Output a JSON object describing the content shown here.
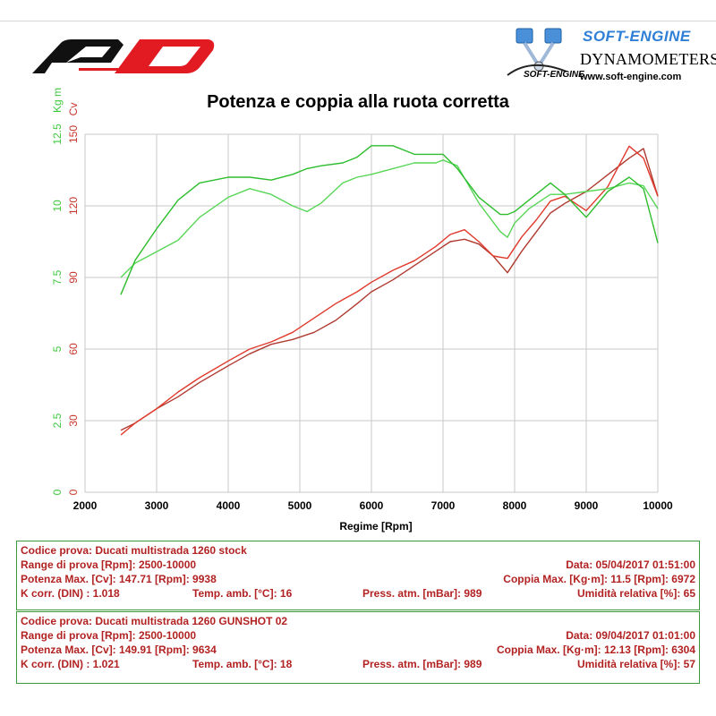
{
  "header": {
    "softengine_brand": "SOFT-ENGINE",
    "softengine_line": "DYNAMOMETERS",
    "softengine_web": "www.soft-engine.com",
    "softengine_script": "SOFT-ENGINE"
  },
  "colors": {
    "power": "#c8352a",
    "torque": "#3cc83c",
    "info_text": "#b22222",
    "box_border": "#3a9a3a",
    "grid": "#c8c8c8"
  },
  "chart_data": {
    "type": "line",
    "title": "Potenza e coppia alla ruota corretta",
    "xlabel": "Regime [Rpm]",
    "ylabel_left_torque": "Kg m",
    "ylabel_left_power": "Cv",
    "xlim": [
      2000,
      10000
    ],
    "ylim_power": [
      0,
      150
    ],
    "ylim_torque": [
      0,
      12.5
    ],
    "x_ticks": [
      "2000",
      "3000",
      "4000",
      "5000",
      "6000",
      "7000",
      "8000",
      "9000",
      "10000"
    ],
    "y_ticks_power": [
      "0",
      "30",
      "60",
      "90",
      "120",
      "150"
    ],
    "y_ticks_torque": [
      "0",
      "2.5",
      "5",
      "7.5",
      "10",
      "12.5"
    ],
    "grid": true,
    "series": [
      {
        "name": "Ducati multistrada 1260 stock",
        "quantity": "power",
        "axis": "Cv",
        "color": "#b03a30",
        "x": [
          2500,
          2700,
          3000,
          3300,
          3600,
          4000,
          4300,
          4600,
          4900,
          5200,
          5500,
          5800,
          6000,
          6300,
          6600,
          6900,
          7100,
          7300,
          7500,
          7700,
          7900,
          8100,
          8300,
          8500,
          8700,
          9000,
          9300,
          9600,
          9800,
          10000
        ],
        "y": [
          26,
          29,
          35,
          40,
          46,
          53,
          58,
          62,
          64,
          67,
          72,
          79,
          84,
          89,
          95,
          101,
          105,
          106,
          104,
          99,
          92,
          101,
          109,
          117,
          121,
          126,
          133,
          140,
          144,
          124
        ]
      },
      {
        "name": "Ducati multistrada 1260 GUNSHOT 02",
        "quantity": "power",
        "axis": "Cv",
        "color": "#e0392b",
        "x": [
          2500,
          2700,
          3000,
          3300,
          3600,
          4000,
          4300,
          4600,
          4900,
          5200,
          5500,
          5800,
          6000,
          6300,
          6600,
          6900,
          7100,
          7300,
          7500,
          7700,
          7900,
          8100,
          8300,
          8500,
          8700,
          9000,
          9300,
          9600,
          9800,
          10000
        ],
        "y": [
          24,
          29,
          35,
          42,
          48,
          55,
          60,
          63,
          67,
          73,
          79,
          84,
          88,
          93,
          97,
          103,
          108,
          110,
          105,
          99,
          98,
          107,
          114,
          122,
          124,
          118,
          128,
          145,
          140,
          124
        ]
      },
      {
        "name": "Ducati multistrada 1260 stock",
        "quantity": "torque",
        "axis": "Kg m",
        "color": "#57d657",
        "x": [
          2500,
          2700,
          3000,
          3300,
          3600,
          4000,
          4300,
          4600,
          4900,
          5100,
          5300,
          5600,
          5800,
          6000,
          6300,
          6600,
          6900,
          7000,
          7200,
          7500,
          7800,
          7900,
          8000,
          8200,
          8500,
          8700,
          9000,
          9300,
          9600,
          9800,
          10000
        ],
        "y": [
          7.5,
          8.0,
          8.4,
          8.8,
          9.6,
          10.3,
          10.6,
          10.4,
          10.0,
          9.8,
          10.1,
          10.8,
          11.0,
          11.1,
          11.3,
          11.5,
          11.5,
          11.6,
          11.4,
          10.1,
          9.1,
          8.9,
          9.4,
          9.9,
          10.4,
          10.4,
          10.5,
          10.6,
          10.8,
          10.7,
          9.9
        ]
      },
      {
        "name": "Ducati multistrada 1260 GUNSHOT 02",
        "quantity": "torque",
        "axis": "Kg m",
        "color": "#2dbd2d",
        "x": [
          2500,
          2700,
          3000,
          3300,
          3600,
          4000,
          4300,
          4600,
          4900,
          5100,
          5300,
          5600,
          5800,
          6000,
          6300,
          6600,
          6900,
          7000,
          7200,
          7500,
          7800,
          7900,
          8000,
          8200,
          8500,
          8700,
          9000,
          9300,
          9600,
          9800,
          10000
        ],
        "y": [
          6.9,
          8.1,
          9.2,
          10.2,
          10.8,
          11.0,
          11.0,
          10.9,
          11.1,
          11.3,
          11.4,
          11.5,
          11.7,
          12.1,
          12.1,
          11.8,
          11.8,
          11.8,
          11.3,
          10.3,
          9.7,
          9.7,
          9.8,
          10.2,
          10.8,
          10.4,
          9.6,
          10.5,
          11.0,
          10.6,
          8.7
        ]
      }
    ]
  },
  "tests": [
    {
      "code": "Codice prova: Ducati multistrada 1260 stock",
      "range": "Range di prova [Rpm]: 2500-10000",
      "date": "Data: 05/04/2017   01:51:00",
      "power": "Potenza Max. [Cv]: 147.71   [Rpm]: 9938",
      "torque": "Coppia Max. [Kg·m]: 11.5   [Rpm]: 6972",
      "kcorr": "K corr. (DIN) : 1.018",
      "temp": "Temp. amb. [°C]: 16",
      "press": "Press. atm. [mBar]: 989",
      "humidity": "Umidità relativa [%]: 65"
    },
    {
      "code": "Codice prova: Ducati multistrada 1260 GUNSHOT 02",
      "range": "Range di prova [Rpm]: 2500-10000",
      "date": "Data: 09/04/2017   01:01:00",
      "power": "Potenza Max. [Cv]: 149.91   [Rpm]: 9634",
      "torque": "Coppia Max. [Kg·m]: 12.13   [Rpm]: 6304",
      "kcorr": "K corr. (DIN) : 1.021",
      "temp": "Temp. amb. [°C]: 18",
      "press": "Press. atm. [mBar]: 989",
      "humidity": "Umidità relativa [%]: 57"
    }
  ]
}
